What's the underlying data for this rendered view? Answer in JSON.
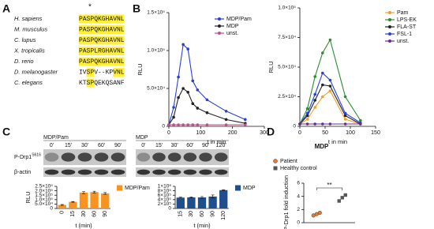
{
  "panel_labels": [
    "A",
    "B",
    "C",
    "D"
  ],
  "alignment": {
    "marker": "*",
    "rows": [
      {
        "species": "H. sapiens",
        "sequence": "PASPQKGHAVNL"
      },
      {
        "species": "M. musculus",
        "sequence": "PASPQKGHAVNL"
      },
      {
        "species": "C. lupus",
        "sequence": "PASPQKGHAVNL"
      },
      {
        "species": "X. tropicalis",
        "sequence": "PASPLRGHAVNL"
      },
      {
        "species": "D. rerio",
        "sequence": "PASPQKGHAVNL"
      },
      {
        "species": "D. melanogaster",
        "sequence": "IVSPV--KPVNL"
      },
      {
        "species": "C. elegans",
        "sequence": "KTSPQEKQSANF"
      }
    ]
  },
  "blot": {
    "groups": [
      {
        "label": "MDP/Pam",
        "times": [
          "0'",
          "15'",
          "30'",
          "60'",
          "90'"
        ]
      },
      {
        "label": "MDP",
        "times": [
          "0'",
          "15'",
          "30'",
          "60'",
          "90'",
          "120'"
        ]
      }
    ],
    "rows": [
      {
        "text": "P-Drp1",
        "sup": "S616"
      },
      {
        "text": "β-actin"
      }
    ]
  },
  "chart_data": [
    {
      "type": "line",
      "xlabel": "t in min",
      "ylabel": "RLU",
      "x": [
        0,
        15,
        30,
        45,
        60,
        75,
        90,
        120,
        180,
        240
      ],
      "xlim": [
        0,
        300
      ],
      "xticks": [
        0,
        100,
        200,
        300
      ],
      "ylim": [
        0,
        150000
      ],
      "yticks": [
        0,
        {
          "value": 50000,
          "label": "5.0×10⁴"
        },
        {
          "value": 100000,
          "label": "1.0×10⁵"
        },
        {
          "value": 150000,
          "label": "1.5×10⁵"
        }
      ],
      "legend": "upper right",
      "series": [
        {
          "name": "MDP/Pam",
          "color": "#2a3fd6",
          "values": [
            2000,
            25000,
            65000,
            108000,
            102000,
            60000,
            48000,
            35000,
            20000,
            9000
          ]
        },
        {
          "name": "MDP",
          "color": "#222222",
          "values": [
            2000,
            12000,
            38000,
            50000,
            45000,
            30000,
            24000,
            18000,
            9000,
            4000
          ]
        },
        {
          "name": "unst.",
          "color": "#c0508a",
          "values": [
            2000,
            2000,
            2000,
            2000,
            2000,
            2000,
            2000,
            2000,
            2000,
            2000
          ]
        }
      ]
    },
    {
      "type": "line",
      "xlabel": "t in min",
      "ylabel": "RLU",
      "x": [
        0,
        15,
        30,
        45,
        60,
        90,
        120
      ],
      "xlim": [
        0,
        150
      ],
      "xticks": [
        0,
        50,
        100,
        150
      ],
      "ylim": [
        0,
        100000
      ],
      "yticks": [
        0,
        {
          "value": 25000,
          "label": "2.5×10⁴"
        },
        {
          "value": 50000,
          "label": "5.0×10⁴"
        },
        {
          "value": 75000,
          "label": "7.5×10⁴"
        },
        {
          "value": 100000,
          "label": "1.0×10⁵"
        }
      ],
      "legend": "outside right",
      "series": [
        {
          "name": "Pam",
          "color": "#f39c2a",
          "values": [
            2000,
            6000,
            16000,
            25000,
            30000,
            6000,
            2000
          ]
        },
        {
          "name": "LPS-EK",
          "color": "#2e8b2e",
          "values": [
            2000,
            15000,
            42000,
            62000,
            73000,
            25000,
            5000
          ]
        },
        {
          "name": "FLA-ST",
          "color": "#222222",
          "values": [
            2000,
            9000,
            22000,
            35000,
            34000,
            9000,
            2000
          ]
        },
        {
          "name": "FSL-1",
          "color": "#2a3fd6",
          "values": [
            2000,
            11000,
            27000,
            45000,
            39000,
            11000,
            3000
          ]
        },
        {
          "name": "unst.",
          "color": "#6a2c8c",
          "values": [
            2000,
            2000,
            2000,
            2000,
            2000,
            2000,
            2000
          ]
        }
      ]
    },
    {
      "type": "bar",
      "xlabel": "t (min)",
      "ylabel": "RLU",
      "categories": [
        "0",
        "15",
        "30",
        "60",
        "90"
      ],
      "ylim": [
        0,
        250000
      ],
      "yticks": [
        0,
        {
          "value": 50000,
          "label": "5.0×10⁴"
        },
        {
          "value": 100000,
          "label": "1.0×10⁵"
        },
        {
          "value": 150000,
          "label": "1.5×10⁵"
        },
        {
          "value": 200000,
          "label": "2.0×10⁵"
        },
        {
          "value": 250000,
          "label": "2.5×10⁵"
        }
      ],
      "legend": "outside right",
      "series": [
        {
          "name": "MDP/Pam",
          "color": "#f7931e",
          "values": [
            40000,
            75000,
            180000,
            185000,
            170000
          ],
          "errors": [
            5000,
            4000,
            12000,
            10000,
            10000
          ]
        }
      ]
    },
    {
      "type": "bar",
      "xlabel": "t (min)",
      "categories": [
        "15",
        "30",
        "60",
        "90",
        "120"
      ],
      "ylim": [
        0,
        1000000
      ],
      "yticks": [
        0,
        {
          "value": 200000,
          "label": "2×10⁵"
        },
        {
          "value": 400000,
          "label": "4×10⁵"
        },
        {
          "value": 600000,
          "label": "6×10⁵"
        },
        {
          "value": 800000,
          "label": "8×10⁵"
        },
        {
          "value": 1000000,
          "label": "1×10⁶"
        }
      ],
      "legend": "outside right",
      "series": [
        {
          "name": "MDP",
          "color": "#1f4e8c",
          "values": [
            490000,
            500000,
            500000,
            540000,
            830000
          ],
          "errors": [
            20000,
            25000,
            40000,
            70000,
            10000
          ]
        }
      ]
    },
    {
      "type": "scatter",
      "title": "MDP",
      "ylabel": "P-Drp1 fold induction",
      "ylim": [
        0,
        6
      ],
      "yticks": [
        0,
        2,
        4,
        6
      ],
      "annotation": "**",
      "legend": "upper left",
      "series": [
        {
          "name": "Patient",
          "color": "#e07b39",
          "values": [
            1.1,
            1.3,
            1.5
          ]
        },
        {
          "name": "Healthy control",
          "color": "#555555",
          "values": [
            3.3,
            3.8,
            4.2
          ]
        }
      ]
    }
  ]
}
